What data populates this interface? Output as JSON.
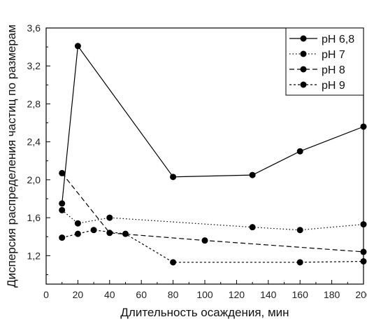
{
  "chart_data": {
    "type": "line",
    "xlabel": "Длительность осаждения, мин",
    "ylabel": "Дисперсия распределения частиц по размерам",
    "xlim": [
      0,
      200
    ],
    "ylim": [
      0.9,
      3.6
    ],
    "xticks": [
      0,
      20,
      40,
      60,
      80,
      100,
      120,
      140,
      160,
      180,
      200
    ],
    "xtick_labels": [
      "0",
      "20",
      "40",
      "60",
      "80",
      "100",
      "120",
      "140",
      "160",
      "180",
      "200"
    ],
    "yticks": [
      1.2,
      1.6,
      2.0,
      2.4,
      2.8,
      3.2,
      3.6
    ],
    "ytick_labels": [
      "1,2",
      "1,6",
      "2,0",
      "2,4",
      "2,8",
      "3,2",
      "3,6"
    ],
    "grid": false,
    "legend_position": "top-right",
    "series": [
      {
        "name": "pH 6,8",
        "style": "solid",
        "x": [
          10,
          20,
          80,
          130,
          160,
          200
        ],
        "y": [
          1.75,
          3.41,
          2.03,
          2.05,
          2.3,
          2.56
        ]
      },
      {
        "name": "pH 7",
        "style": "dotted",
        "x": [
          10,
          20,
          40,
          130,
          160,
          200
        ],
        "y": [
          1.68,
          1.54,
          1.6,
          1.5,
          1.47,
          1.53
        ]
      },
      {
        "name": "pH 8",
        "style": "dashed",
        "x": [
          10,
          40,
          100,
          200
        ],
        "y": [
          2.07,
          1.44,
          1.36,
          1.24
        ]
      },
      {
        "name": "pH 9",
        "style": "short-dash",
        "x": [
          10,
          20,
          30,
          50,
          80,
          160,
          200
        ],
        "y": [
          1.39,
          1.43,
          1.47,
          1.43,
          1.13,
          1.13,
          1.14
        ]
      }
    ]
  }
}
